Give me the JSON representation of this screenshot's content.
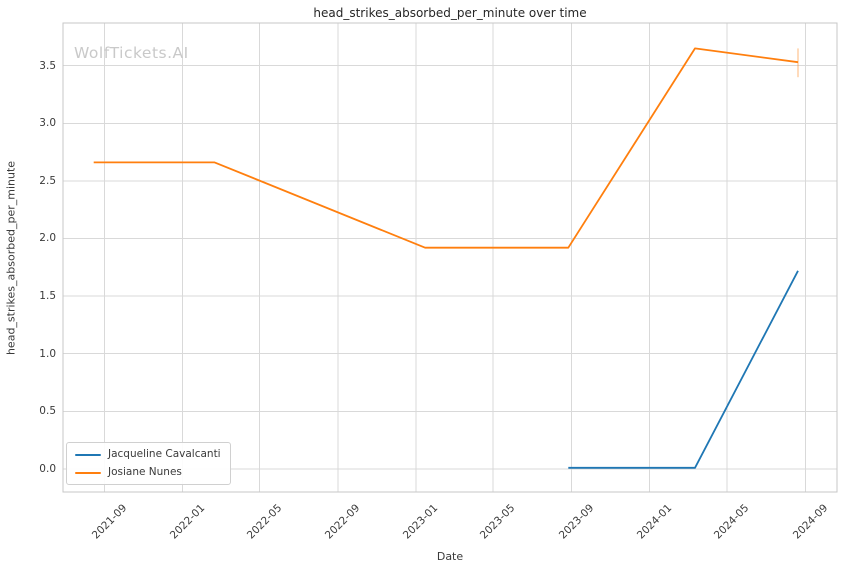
{
  "watermark": "WolfTickets.AI",
  "chart_data": {
    "type": "line",
    "title": "head_strikes_absorbed_per_minute over time",
    "xlabel": "Date",
    "ylabel": "head_strikes_absorbed_per_minute",
    "grid": true,
    "legend_position": "lower left",
    "x_tick_labels": [
      "2021-09",
      "2022-01",
      "2022-05",
      "2022-09",
      "2023-01",
      "2023-05",
      "2023-09",
      "2024-01",
      "2024-05",
      "2024-09"
    ],
    "y_ticks": [
      0.0,
      0.5,
      1.0,
      1.5,
      2.0,
      2.5,
      3.0,
      3.5
    ],
    "y_tick_labels": [
      "0.0",
      "0.5",
      "1.0",
      "1.5",
      "2.0",
      "2.5",
      "3.0",
      "3.5"
    ],
    "xlim": [
      "2021-06-28",
      "2024-10-20"
    ],
    "ylim": [
      -0.2,
      3.87
    ],
    "style": {
      "grid_color": "#d9d9d9",
      "spine_color": "#c7c7c7",
      "text_color": "#3a3a3a",
      "background": "#ffffff"
    },
    "series": [
      {
        "name": "Jacqueline Cavalcanti",
        "color": "#1f77b4",
        "x": [
          "2023-08-27",
          "2024-03-12",
          "2024-08-20"
        ],
        "y": [
          0.01,
          0.01,
          1.72
        ]
      },
      {
        "name": "Josiane Nunes",
        "color": "#ff7f0e",
        "x": [
          "2021-08-15",
          "2022-02-20",
          "2023-01-15",
          "2023-08-27",
          "2024-03-12",
          "2024-08-20"
        ],
        "y": [
          2.66,
          2.66,
          1.92,
          1.92,
          3.65,
          3.53
        ],
        "error_bar": {
          "x": "2024-08-20",
          "y_low": 3.4,
          "y_high": 3.65
        }
      }
    ]
  }
}
